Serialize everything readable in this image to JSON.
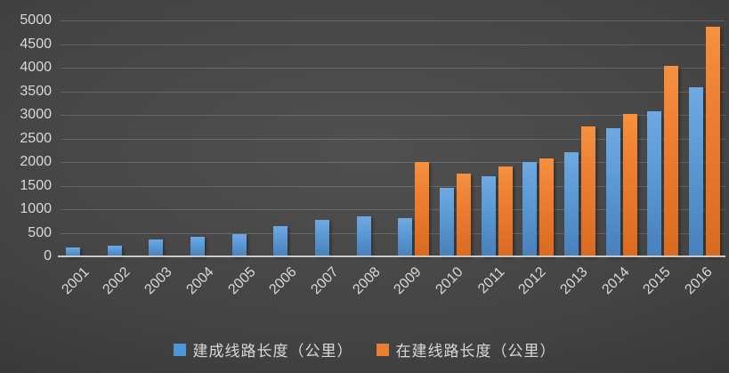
{
  "chart_data": {
    "type": "bar",
    "title": "",
    "xlabel": "",
    "ylabel": "",
    "categories": [
      "2001",
      "2002",
      "2003",
      "2004",
      "2005",
      "2006",
      "2007",
      "2008",
      "2009",
      "2010",
      "2011",
      "2012",
      "2013",
      "2014",
      "2015",
      "2016"
    ],
    "series": [
      {
        "name": "建成线路长度（公里）",
        "color": "#5B9BD5",
        "values": [
          180,
          235,
          360,
          410,
          480,
          650,
          780,
          850,
          820,
          1450,
          1690,
          2000,
          2210,
          2710,
          3080,
          3580
        ]
      },
      {
        "name": "在建线路长度（公里）",
        "color": "#ED7D31",
        "values": [
          0,
          0,
          0,
          0,
          0,
          0,
          0,
          0,
          2000,
          1760,
          1900,
          2070,
          2760,
          3020,
          4040,
          4870
        ]
      }
    ],
    "ylim": [
      0,
      5000
    ],
    "ytick_step": 500,
    "yticks": [
      0,
      500,
      1000,
      1500,
      2000,
      2500,
      3000,
      3500,
      4000,
      4500,
      5000
    ],
    "grid": "horizontal",
    "legend_position": "bottom",
    "x_label_rotation_deg": -45,
    "background": "dark-gray-gradient"
  },
  "colors": {
    "series_built": "#5B9BD5",
    "series_under_construction": "#ED7D31",
    "gridline": "rgba(255,255,255,0.16)",
    "axis_line": "#C9C9C9",
    "tick_text": "#D9D9D9"
  }
}
